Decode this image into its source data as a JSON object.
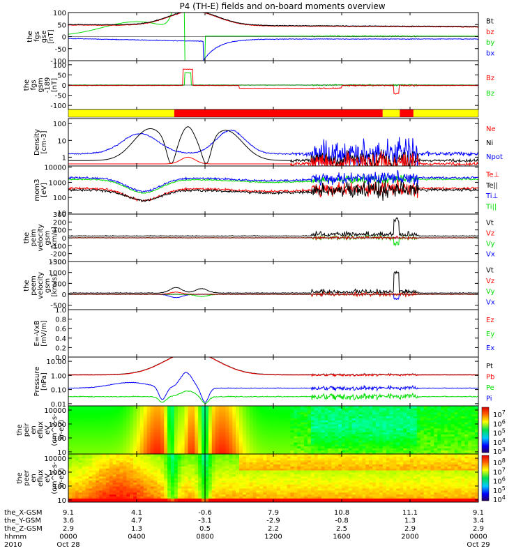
{
  "title": "P4 (TH-E) fields and on-board moments overview",
  "colors": {
    "black": "#000000",
    "red": "#ff0000",
    "green": "#00dd00",
    "blue": "#0000ff",
    "yellow": "#ffff00"
  },
  "chart_data": [
    {
      "type": "line",
      "ylabel": "the\nfgs\ngse\n[nT]",
      "ylim": [
        -100,
        100
      ],
      "yticks": [
        "100",
        "50",
        "0",
        "-50",
        "-100"
      ],
      "ytick_values": [
        100,
        50,
        0,
        -50,
        -100
      ],
      "legend": [
        {
          "label": "Bt",
          "color": "#000000"
        },
        {
          "label": "bz",
          "color": "#ff0000"
        },
        {
          "label": "by",
          "color": "#00dd00"
        },
        {
          "label": "bx",
          "color": "#0000ff"
        }
      ]
    },
    {
      "type": "line",
      "ylabel": "the\nfgs\ngsm\n-189\n[nT]",
      "ylim": [
        -120,
        120
      ],
      "yticks": [
        "100",
        "50",
        "0",
        "-50",
        "-100"
      ],
      "ytick_values": [
        100,
        50,
        0,
        -50,
        -100
      ],
      "legend": [
        {
          "label": "Bz",
          "color": "#ff0000"
        },
        {
          "label": "Bz",
          "color": "#00dd00"
        }
      ]
    },
    {
      "type": "bar",
      "mode_bar": [
        {
          "from": 0.0,
          "to": 6.2,
          "color": "#ffff00"
        },
        {
          "from": 6.2,
          "to": 18.4,
          "color": "#ff0000"
        },
        {
          "from": 18.4,
          "to": 19.4,
          "color": "#ffff00"
        },
        {
          "from": 19.4,
          "to": 20.2,
          "color": "#ff0000"
        },
        {
          "from": 20.2,
          "to": 24.0,
          "color": "#ffff00"
        }
      ]
    },
    {
      "type": "line",
      "ylabel": "Density\n[cm-3]",
      "ylim": [
        0.3,
        200
      ],
      "log": true,
      "yticks": [
        "100",
        "10",
        "1"
      ],
      "ytick_values": [
        100,
        10,
        1
      ],
      "legend": [
        {
          "label": "Ne",
          "color": "#ff0000"
        },
        {
          "label": "Ni",
          "color": "#000000"
        },
        {
          "label": "Npot",
          "color": "#0000ff"
        }
      ]
    },
    {
      "type": "line",
      "ylabel": "mom3\n[eV]",
      "ylim": [
        8,
        12000
      ],
      "log": true,
      "yticks": [
        "10000",
        "1000",
        "100",
        "10"
      ],
      "ytick_values": [
        10000,
        1000,
        100,
        10
      ],
      "legend": [
        {
          "label": "Te⊥",
          "color": "#ff0000"
        },
        {
          "label": "Te||",
          "color": "#000000"
        },
        {
          "label": "Ti⊥",
          "color": "#0000ff"
        },
        {
          "label": "Ti||",
          "color": "#00dd00"
        }
      ]
    },
    {
      "type": "line",
      "ylabel": "the\npeim\nvelocity\ngsm\n[km/s]",
      "ylim": [
        -300,
        300
      ],
      "yticks": [
        "300",
        "200",
        "100",
        "0",
        "-100",
        "-200",
        "-300"
      ],
      "ytick_values": [
        300,
        200,
        100,
        0,
        -100,
        -200,
        -300
      ],
      "legend": [
        {
          "label": "Vt",
          "color": "#000000"
        },
        {
          "label": "Vz",
          "color": "#ff0000"
        },
        {
          "label": "Vy",
          "color": "#00dd00"
        },
        {
          "label": "Vx",
          "color": "#0000ff"
        }
      ]
    },
    {
      "type": "line",
      "ylabel": "the\npeem\nvelocity\ngsm\n[km/s]",
      "ylim": [
        -700,
        1500
      ],
      "yticks": [
        "1500",
        "1000",
        "500",
        "0",
        "-500"
      ],
      "ytick_values": [
        1500,
        1000,
        500,
        0,
        -500
      ],
      "legend": [
        {
          "label": "Vt",
          "color": "#000000"
        },
        {
          "label": "Vz",
          "color": "#ff0000"
        },
        {
          "label": "Vy",
          "color": "#00dd00"
        },
        {
          "label": "Vx",
          "color": "#0000ff"
        }
      ]
    },
    {
      "type": "line",
      "ylabel": "E=-VxB\n[mV/m]",
      "ylim": [
        0,
        1
      ],
      "yticks": [
        "1.0",
        "0.8",
        "0.6",
        "0.4",
        "0.2",
        "0.0"
      ],
      "ytick_values": [
        1.0,
        0.8,
        0.6,
        0.4,
        0.2,
        0.0
      ],
      "legend": [
        {
          "label": "Ez",
          "color": "#ff0000"
        },
        {
          "label": "Ey",
          "color": "#00dd00"
        },
        {
          "label": "Ex",
          "color": "#0000ff"
        }
      ]
    },
    {
      "type": "line",
      "ylabel": "Pressure\n[nPa]",
      "ylim": [
        0.007,
        20
      ],
      "log": true,
      "yticks": [
        "10.00",
        "1.00",
        "0.10",
        "0.01"
      ],
      "ytick_values": [
        10,
        1,
        0.1,
        0.01
      ],
      "legend": [
        {
          "label": "Pt",
          "color": "#000000"
        },
        {
          "label": "Pb",
          "color": "#ff0000"
        },
        {
          "label": "Pe",
          "color": "#00dd00"
        },
        {
          "label": "Pi",
          "color": "#0000ff"
        }
      ]
    },
    {
      "type": "heatmap",
      "ylabel": "the\npeir\nen\neflux\neV\n(cm^2-s-\nsr-eV)",
      "ylim": [
        7,
        20000
      ],
      "log": true,
      "yticks": [
        "10000",
        "1000",
        "100",
        "10"
      ],
      "ytick_values": [
        10000,
        1000,
        100,
        10
      ],
      "colorbar": [
        "10^7",
        "10^6",
        "10^5",
        "10^4",
        "10^3"
      ],
      "colorbar_values": [
        7,
        6,
        5,
        4,
        3
      ]
    },
    {
      "type": "heatmap",
      "ylabel": "the\npeer\nen\neflux\neV\n(cm^2-s-\nsr-eV)",
      "ylim": [
        7,
        20000
      ],
      "log": true,
      "yticks": [
        "10000",
        "1000",
        "100",
        "10"
      ],
      "ytick_values": [
        10000,
        1000,
        100,
        10
      ],
      "colorbar": [
        "10^8",
        "10^7",
        "10^6",
        "10^5",
        "10^4"
      ],
      "colorbar_values": [
        8,
        7,
        6,
        5,
        4
      ]
    }
  ],
  "xaxis": {
    "xlim": [
      0,
      24
    ],
    "ticks": [
      0,
      4,
      8,
      12,
      16,
      20,
      24
    ],
    "row_labels": [
      "the_X-GSM",
      "the_Y-GSM",
      "the_Z-GSM",
      "hhmm",
      "2010"
    ],
    "columns": [
      [
        "9.1",
        "3.6",
        "2.9",
        "0000",
        "Oct 28"
      ],
      [
        "4.1",
        "4.7",
        "1.3",
        "0400",
        ""
      ],
      [
        "-0.6",
        "-3.1",
        "0.5",
        "0800",
        ""
      ],
      [
        "7.9",
        "-2.9",
        "2.2",
        "1200",
        ""
      ],
      [
        "10.8",
        "-0.8",
        "2.5",
        "1600",
        ""
      ],
      [
        "11.1",
        "1.3",
        "2.9",
        "2000",
        ""
      ],
      [
        "9.1",
        "3.4",
        "2.9",
        "0000",
        "Oct 29"
      ]
    ]
  }
}
